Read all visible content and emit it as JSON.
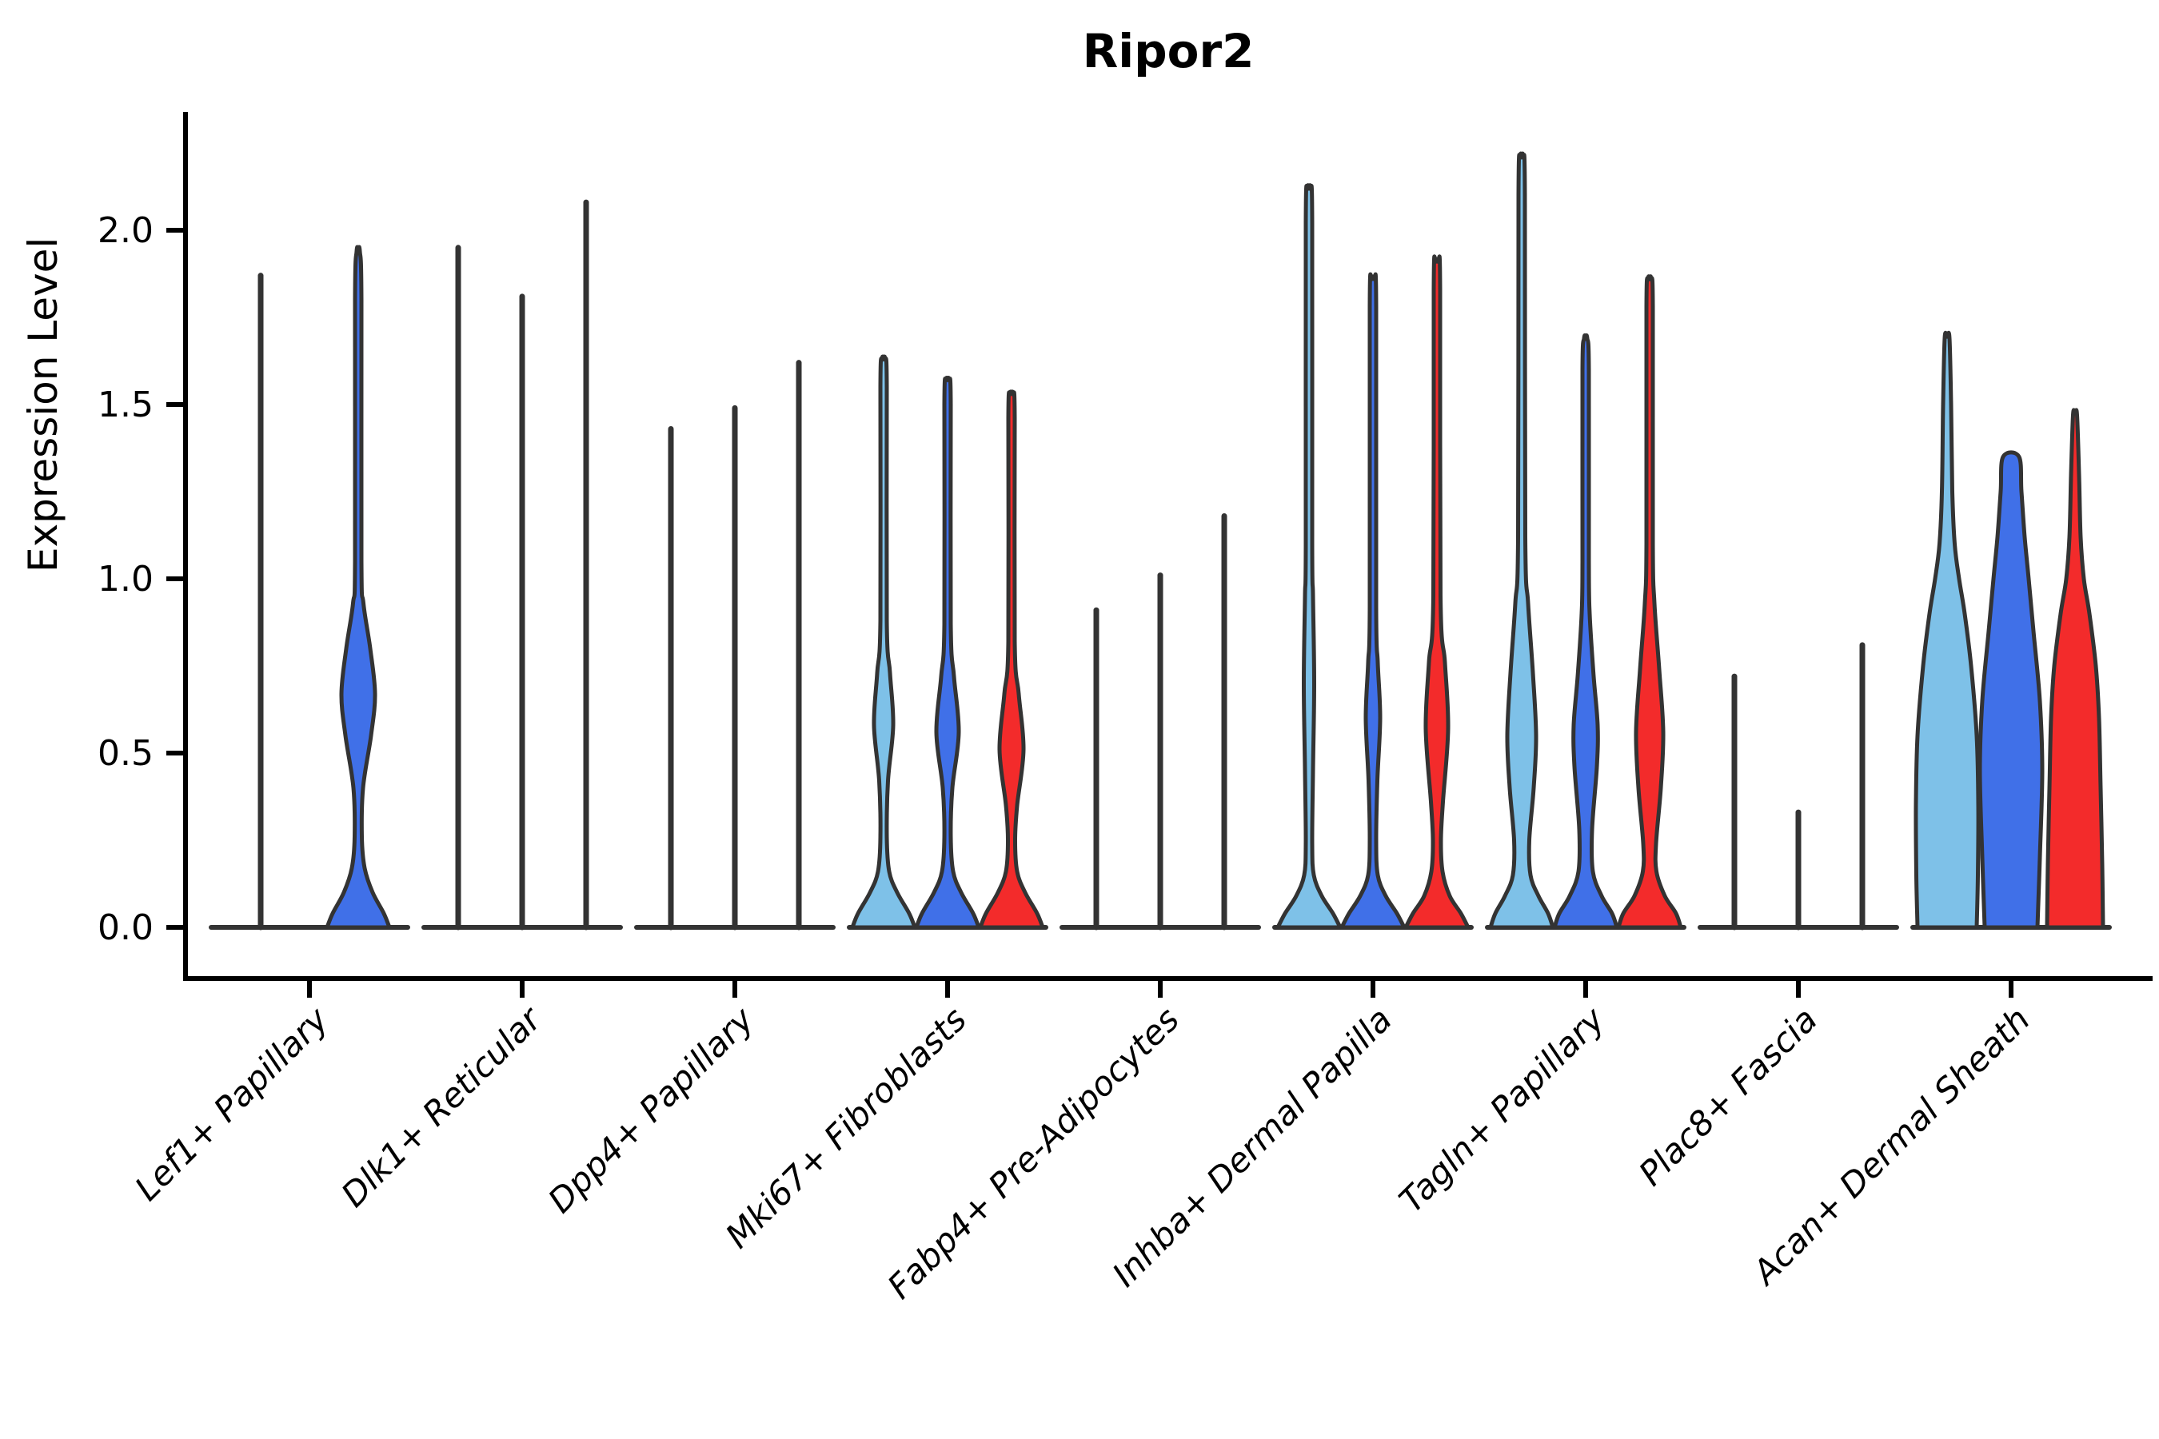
{
  "title": "Ripor2",
  "y_axis": {
    "label": "Expression Level",
    "ticks": [
      {
        "label": "0.0",
        "value": 0.0
      },
      {
        "label": "0.5",
        "value": 0.5
      },
      {
        "label": "1.0",
        "value": 1.0
      },
      {
        "label": "1.5",
        "value": 1.5
      },
      {
        "label": "2.0",
        "value": 2.0
      }
    ]
  },
  "chart_data": {
    "type": "violin",
    "title": "Ripor2",
    "ylabel": "Expression Level",
    "ylim": [
      -0.15,
      2.34
    ],
    "grid": false,
    "legend": "none",
    "series": [
      {
        "name": "lightblue",
        "color": "#7EC1E8"
      },
      {
        "name": "blue",
        "color": "#4070E8"
      },
      {
        "name": "red",
        "color": "#F32B2B"
      }
    ],
    "outline_color": "#333333",
    "categories": [
      "Lef1+ Papillary",
      "Dlk1+ Reticular",
      "Dpp4+ Papillary",
      "Mki67+ Fibroblasts",
      "Fabp4+ Pre-Adipocytes",
      "Inhba+ Dermal Papilla",
      "Tagln+ Papillary",
      "Plac8+ Fascia",
      "Acan+ Dermal Sheath"
    ],
    "groups": [
      {
        "category": "Lef1+ Papillary",
        "violins": [
          {
            "series": 0,
            "kind": "spike",
            "max": 1.87,
            "offset": -61
          },
          {
            "series": 1,
            "kind": "violin",
            "max": 1.94,
            "offset": 61,
            "profile": [
              [
                0,
                39
              ],
              [
                0.04,
                32
              ],
              [
                0.1,
                18
              ],
              [
                0.17,
                8
              ],
              [
                0.26,
                4.5
              ],
              [
                0.4,
                6
              ],
              [
                0.55,
                16
              ],
              [
                0.67,
                21
              ],
              [
                0.8,
                15
              ],
              [
                0.93,
                6.5
              ],
              [
                1.05,
                4
              ],
              [
                1.8,
                4
              ],
              [
                1.94,
                2
              ]
            ]
          }
        ]
      },
      {
        "category": "Dlk1+ Reticular",
        "violins": [
          {
            "series": 0,
            "kind": "spike",
            "max": 1.95,
            "offset": -80
          },
          {
            "series": 1,
            "kind": "spike",
            "max": 1.81,
            "offset": 0
          },
          {
            "series": 2,
            "kind": "spike",
            "max": 2.08,
            "offset": 80
          }
        ]
      },
      {
        "category": "Dpp4+ Papillary",
        "violins": [
          {
            "series": 0,
            "kind": "spike",
            "max": 1.43,
            "offset": -80
          },
          {
            "series": 1,
            "kind": "spike",
            "max": 1.49,
            "offset": 0
          },
          {
            "series": 2,
            "kind": "spike",
            "max": 1.62,
            "offset": 80
          }
        ]
      },
      {
        "category": "Mki67+ Fibroblasts",
        "violins": [
          {
            "series": 0,
            "kind": "violin",
            "max": 1.63,
            "offset": -80,
            "profile": [
              [
                0,
                39
              ],
              [
                0.04,
                32
              ],
              [
                0.1,
                17
              ],
              [
                0.16,
                7
              ],
              [
                0.26,
                4
              ],
              [
                0.42,
                5.5
              ],
              [
                0.58,
                12
              ],
              [
                0.73,
                8
              ],
              [
                0.88,
                4
              ],
              [
                1.55,
                4
              ],
              [
                1.63,
                2
              ]
            ]
          },
          {
            "series": 1,
            "kind": "violin",
            "max": 1.57,
            "offset": 0,
            "profile": [
              [
                0,
                39
              ],
              [
                0.04,
                32
              ],
              [
                0.1,
                17
              ],
              [
                0.16,
                7
              ],
              [
                0.26,
                4
              ],
              [
                0.4,
                6
              ],
              [
                0.56,
                14
              ],
              [
                0.72,
                8
              ],
              [
                0.87,
                4
              ],
              [
                1.5,
                4
              ],
              [
                1.57,
                2
              ]
            ]
          },
          {
            "series": 2,
            "kind": "violin",
            "max": 1.53,
            "offset": 80,
            "profile": [
              [
                0,
                39
              ],
              [
                0.04,
                32
              ],
              [
                0.1,
                17
              ],
              [
                0.16,
                7
              ],
              [
                0.25,
                4.5
              ],
              [
                0.35,
                7
              ],
              [
                0.51,
                15
              ],
              [
                0.67,
                9
              ],
              [
                0.82,
                4
              ],
              [
                1.46,
                4
              ],
              [
                1.53,
                2
              ]
            ]
          }
        ]
      },
      {
        "category": "Fabp4+ Pre-Adipocytes",
        "violins": [
          {
            "series": 0,
            "kind": "spike",
            "max": 0.91,
            "offset": -80
          },
          {
            "series": 1,
            "kind": "spike",
            "max": 1.01,
            "offset": 0
          },
          {
            "series": 2,
            "kind": "spike",
            "max": 1.18,
            "offset": 80
          }
        ]
      },
      {
        "category": "Inhba+ Dermal Papilla",
        "violins": [
          {
            "series": 0,
            "kind": "violin",
            "max": 2.12,
            "offset": -80,
            "profile": [
              [
                0,
                39
              ],
              [
                0.04,
                30
              ],
              [
                0.09,
                16
              ],
              [
                0.15,
                6
              ],
              [
                0.24,
                4
              ],
              [
                0.45,
                5
              ],
              [
                0.7,
                6.5
              ],
              [
                0.95,
                5
              ],
              [
                1.1,
                4
              ],
              [
                2.02,
                4
              ],
              [
                2.12,
                2
              ]
            ]
          },
          {
            "series": 1,
            "kind": "violin",
            "max": 1.86,
            "offset": 0,
            "profile": [
              [
                0,
                39
              ],
              [
                0.04,
                30
              ],
              [
                0.09,
                16
              ],
              [
                0.15,
                6
              ],
              [
                0.25,
                4
              ],
              [
                0.42,
                5.5
              ],
              [
                0.6,
                9
              ],
              [
                0.76,
                6
              ],
              [
                0.92,
                4
              ],
              [
                1.78,
                4
              ],
              [
                1.86,
                2
              ]
            ]
          },
          {
            "series": 2,
            "kind": "violin",
            "max": 1.91,
            "offset": 80,
            "profile": [
              [
                0,
                39
              ],
              [
                0.04,
                30
              ],
              [
                0.09,
                16
              ],
              [
                0.16,
                7
              ],
              [
                0.25,
                5
              ],
              [
                0.36,
                7.5
              ],
              [
                0.57,
                14
              ],
              [
                0.76,
                10
              ],
              [
                0.95,
                4.5
              ],
              [
                1.83,
                4
              ],
              [
                1.91,
                2
              ]
            ]
          }
        ]
      },
      {
        "category": "Tagln+ Papillary",
        "violins": [
          {
            "series": 0,
            "kind": "violin",
            "max": 2.21,
            "offset": -80,
            "profile": [
              [
                0,
                39
              ],
              [
                0.04,
                33
              ],
              [
                0.09,
                21
              ],
              [
                0.15,
                11
              ],
              [
                0.25,
                9.5
              ],
              [
                0.4,
                15
              ],
              [
                0.55,
                18
              ],
              [
                0.73,
                14
              ],
              [
                0.93,
                8
              ],
              [
                1.12,
                4.5
              ],
              [
                2.1,
                4
              ],
              [
                2.21,
                2
              ]
            ]
          },
          {
            "series": 1,
            "kind": "violin",
            "max": 1.69,
            "offset": 0,
            "profile": [
              [
                0,
                39
              ],
              [
                0.04,
                33
              ],
              [
                0.09,
                20
              ],
              [
                0.16,
                9
              ],
              [
                0.28,
                8
              ],
              [
                0.46,
                14
              ],
              [
                0.58,
                15
              ],
              [
                0.72,
                10
              ],
              [
                0.9,
                5
              ],
              [
                1.05,
                4
              ],
              [
                1.6,
                4
              ],
              [
                1.69,
                2
              ]
            ]
          },
          {
            "series": 2,
            "kind": "violin",
            "max": 1.86,
            "offset": 80,
            "profile": [
              [
                0,
                39
              ],
              [
                0.04,
                33
              ],
              [
                0.09,
                19
              ],
              [
                0.16,
                8.5
              ],
              [
                0.24,
                8
              ],
              [
                0.4,
                14
              ],
              [
                0.56,
                17
              ],
              [
                0.74,
                12
              ],
              [
                0.93,
                6
              ],
              [
                1.1,
                4
              ],
              [
                1.78,
                4
              ],
              [
                1.86,
                2
              ]
            ]
          }
        ]
      },
      {
        "category": "Plac8+ Fascia",
        "violins": [
          {
            "series": 0,
            "kind": "spike",
            "max": 0.72,
            "offset": -80
          },
          {
            "series": 1,
            "kind": "spike",
            "max": 0.33,
            "offset": 0
          },
          {
            "series": 2,
            "kind": "spike",
            "max": 0.81,
            "offset": 80
          }
        ]
      },
      {
        "category": "Acan+ Dermal Sheath",
        "violins": [
          {
            "series": 0,
            "kind": "violin",
            "max": 1.69,
            "offset": -80,
            "profile": [
              [
                0,
                37
              ],
              [
                0.15,
                38.5
              ],
              [
                0.35,
                39
              ],
              [
                0.55,
                37
              ],
              [
                0.75,
                30
              ],
              [
                0.9,
                22
              ],
              [
                1.0,
                15
              ],
              [
                1.1,
                9.5
              ],
              [
                1.25,
                6.5
              ],
              [
                1.5,
                5
              ],
              [
                1.69,
                3
              ]
            ]
          },
          {
            "series": 1,
            "kind": "violin",
            "max": 1.35,
            "offset": 0,
            "profile": [
              [
                0,
                33
              ],
              [
                0.2,
                36
              ],
              [
                0.45,
                39
              ],
              [
                0.65,
                36
              ],
              [
                0.85,
                28
              ],
              [
                1.0,
                22
              ],
              [
                1.12,
                17
              ],
              [
                1.25,
                13
              ],
              [
                1.35,
                10
              ]
            ]
          },
          {
            "series": 2,
            "kind": "violin",
            "max": 1.47,
            "offset": 80,
            "profile": [
              [
                0,
                35
              ],
              [
                0.18,
                34
              ],
              [
                0.4,
                32
              ],
              [
                0.6,
                30
              ],
              [
                0.75,
                26
              ],
              [
                0.9,
                18
              ],
              [
                1.0,
                11
              ],
              [
                1.12,
                7
              ],
              [
                1.3,
                5
              ],
              [
                1.47,
                2.5
              ]
            ]
          }
        ]
      }
    ]
  }
}
